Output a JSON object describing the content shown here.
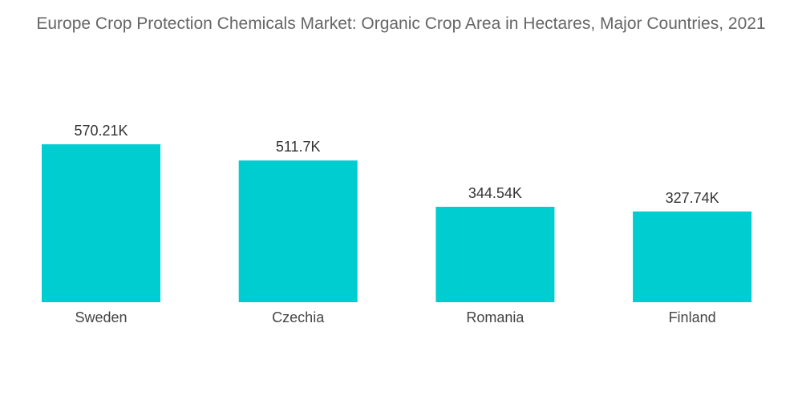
{
  "chart_data": {
    "type": "bar",
    "title": "Europe Crop Protection Chemicals Market: Organic Crop Area in Hectares, Major Countries, 2021",
    "categories": [
      "Sweden",
      "Czechia",
      "Romania",
      "Finland"
    ],
    "values": [
      570.21,
      511.7,
      344.54,
      327.74
    ],
    "value_labels": [
      "570.21K",
      "511.7K",
      "344.54K",
      "327.74K"
    ],
    "bar_color": "#00CDD0",
    "legend": "none",
    "grid": false
  }
}
